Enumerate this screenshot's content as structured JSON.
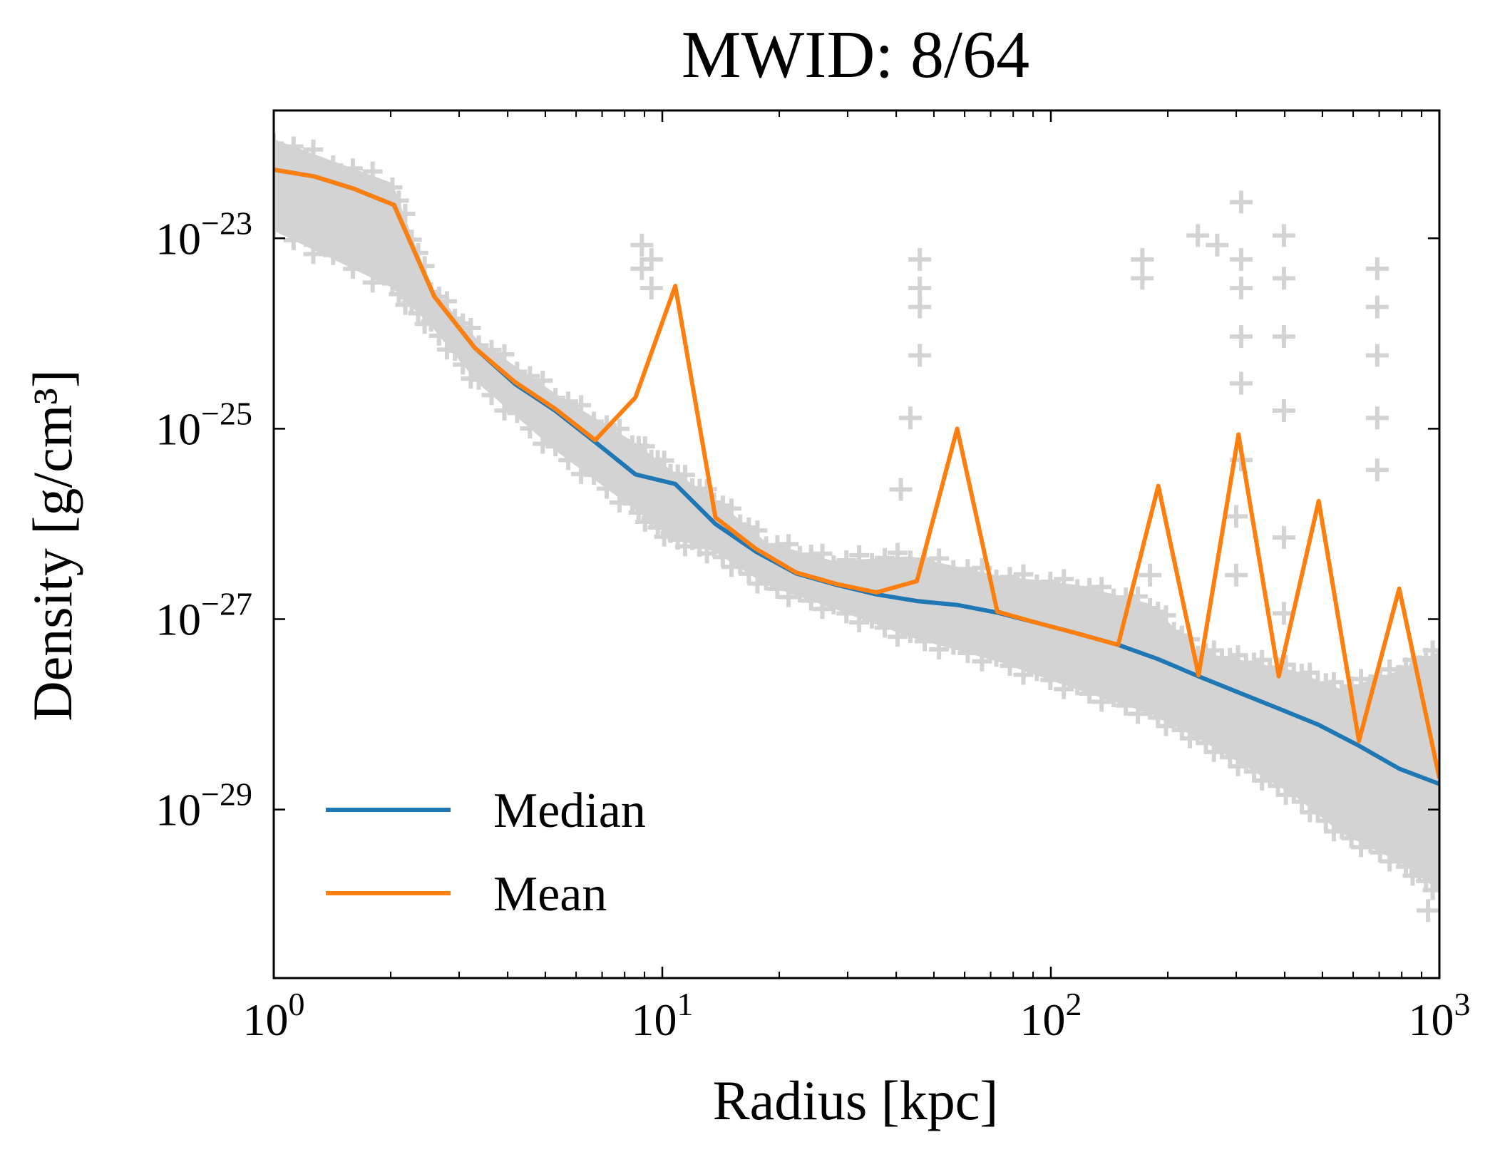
{
  "chart_data": {
    "type": "line",
    "title": "MWID: 8/64",
    "xlabel": "Radius [kpc]",
    "ylabel": "Density [g/cm³]",
    "xscale": "log",
    "yscale": "log",
    "xlim": [
      1,
      1000
    ],
    "ylim": [
      1.7e-31,
      2.2e-22
    ],
    "grid": false,
    "legend_placement": "lower-left",
    "xticks": [
      {
        "value": 1,
        "base": "10",
        "exp": "0"
      },
      {
        "value": 10,
        "base": "10",
        "exp": "1"
      },
      {
        "value": 100,
        "base": "10",
        "exp": "2"
      },
      {
        "value": 1000,
        "base": "10",
        "exp": "3"
      }
    ],
    "yticks": [
      {
        "value": 1e-23,
        "base": "10",
        "exp": "−23"
      },
      {
        "value": 1e-25,
        "base": "10",
        "exp": "−25"
      },
      {
        "value": 1e-27,
        "base": "10",
        "exp": "−27"
      },
      {
        "value": 1e-29,
        "base": "10",
        "exp": "−29"
      }
    ],
    "x": [
      1,
      1.27,
      1.61,
      2.04,
      2.59,
      3.29,
      4.18,
      5.3,
      6.72,
      8.53,
      10.8,
      13.7,
      17.4,
      22.1,
      28.1,
      35.6,
      45.2,
      57.4,
      72.8,
      92.4,
      117,
      149,
      189,
      240,
      304,
      386,
      489,
      621,
      788,
      1000
    ],
    "series": [
      {
        "name": "Median",
        "color": "#1f77b4",
        "values": [
          5.25e-23,
          4.47e-23,
          3.31e-23,
          2.24e-23,
          2.45e-24,
          7.08e-25,
          2.95e-25,
          1.55e-25,
          7.24e-26,
          3.31e-26,
          2.63e-26,
          1e-26,
          5.13e-27,
          3.02e-27,
          2.29e-27,
          1.82e-27,
          1.55e-27,
          1.41e-27,
          1.17e-27,
          9.12e-28,
          7.08e-28,
          5.37e-28,
          3.8e-28,
          2.51e-28,
          1.7e-28,
          1.15e-28,
          7.76e-29,
          4.68e-29,
          2.69e-29,
          1.86e-29
        ]
      },
      {
        "name": "Mean",
        "color": "#ff7f0e",
        "values": [
          5.25e-23,
          4.47e-23,
          3.31e-23,
          2.24e-23,
          2.45e-24,
          7.08e-25,
          3.09e-25,
          1.62e-25,
          7.59e-26,
          2.14e-25,
          3.16e-24,
          1.17e-26,
          5.5e-27,
          3.09e-27,
          2.34e-27,
          1.91e-27,
          2.51e-27,
          1e-25,
          1.2e-27,
          9.12e-28,
          7.08e-28,
          5.37e-28,
          2.51e-26,
          2.57e-28,
          8.71e-26,
          2.51e-28,
          1.74e-26,
          5.25e-29,
          2.09e-27,
          2.14e-29
        ]
      }
    ],
    "scatter_band": {
      "color": "#d3d3d3",
      "x": [
        1,
        2.02,
        2.54,
        3.37,
        5.31,
        8.37,
        10.5,
        13.6,
        18.5,
        27.6,
        43.5,
        72.4,
        117,
        180,
        239,
        318,
        422,
        561,
        788,
        1000
      ],
      "upper": [
        1.1e-22,
        3.8e-23,
        3.02e-24,
        8.32e-25,
        2.34e-25,
        7.41e-26,
        3.72e-26,
        1.86e-26,
        6.46e-27,
        4.07e-27,
        4.57e-27,
        2.88e-27,
        2.29e-27,
        1.45e-27,
        4.57e-28,
        3.63e-28,
        2.88e-28,
        1.82e-28,
        2.88e-28,
        4.57e-28
      ],
      "lower": [
        1.2e-23,
        3.02e-24,
        1.2e-24,
        2.95e-25,
        5.89e-26,
        1.48e-26,
        7.24e-27,
        5.13e-27,
        2.29e-27,
        1.29e-27,
        6.46e-28,
        3.63e-28,
        1.82e-28,
        1.02e-28,
        5.62e-29,
        2.82e-29,
        1.41e-29,
        5.62e-30,
        2.82e-30,
        1.41e-30
      ]
    },
    "scatter_outliers": [
      [
        8.86,
        8.5e-24
      ],
      [
        9.38,
        6e-24
      ],
      [
        8.86,
        4.8e-24
      ],
      [
        9.38,
        3e-24
      ],
      [
        46.0,
        6e-24
      ],
      [
        46.0,
        3e-24
      ],
      [
        46.0,
        1.9e-24
      ],
      [
        46.0,
        5.9e-25
      ],
      [
        43.5,
        1.3e-25
      ],
      [
        41.1,
        2.3e-26
      ],
      [
        172,
        6e-24
      ],
      [
        172,
        3.8e-24
      ],
      [
        239,
        1.07e-23
      ],
      [
        268,
        8.5e-24
      ],
      [
        309,
        2.4e-23
      ],
      [
        309,
        6e-24
      ],
      [
        309,
        3e-24
      ],
      [
        309,
        9.3e-25
      ],
      [
        309,
        3e-25
      ],
      [
        309,
        4.7e-26
      ],
      [
        300,
        1.2e-26
      ],
      [
        300,
        2.9e-27
      ],
      [
        398,
        1.07e-23
      ],
      [
        398,
        3.8e-24
      ],
      [
        398,
        9.3e-25
      ],
      [
        398,
        1.55e-25
      ],
      [
        398,
        7.2e-27
      ],
      [
        398,
        1.15e-27
      ],
      [
        692,
        4.8e-24
      ],
      [
        692,
        1.9e-24
      ],
      [
        692,
        5.9e-25
      ],
      [
        692,
        1.3e-25
      ],
      [
        692,
        3.7e-26
      ],
      [
        180,
        2.9e-27
      ],
      [
        935,
        8.7e-31
      ],
      [
        2.27,
        2.4e-24
      ],
      [
        1.81,
        4.8e-24
      ],
      [
        1.21,
        1.07e-23
      ]
    ]
  }
}
